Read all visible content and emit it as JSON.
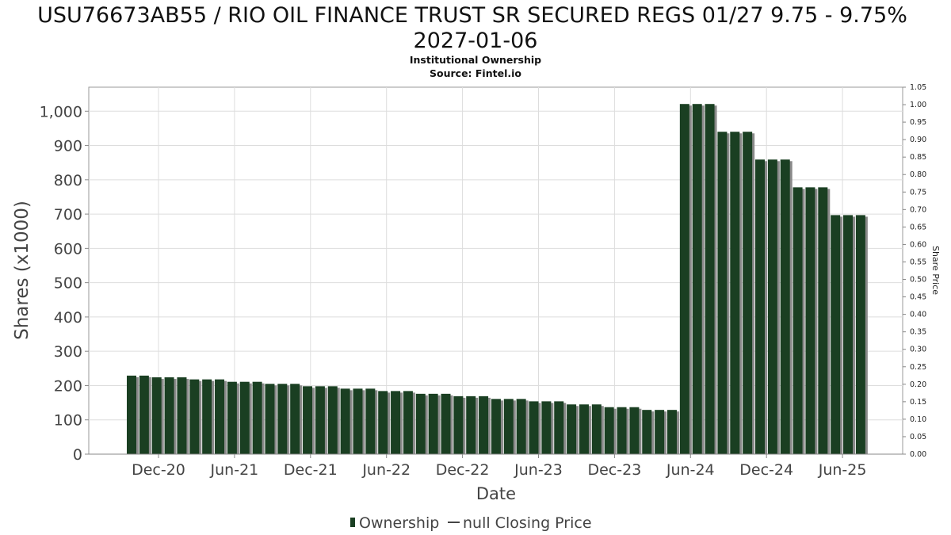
{
  "chart_data": {
    "type": "bar",
    "title_line1": "USU76673AB55 / RIO OIL FINANCE TRUST SR SECURED REGS 01/27 9.75 - 9.75%",
    "title_line2": "2027-01-06",
    "subtitle": "Institutional Ownership",
    "source": "Source: Fintel.io",
    "xlabel": "Date",
    "ylabel": "Shares (x1000)",
    "y2label": "Share Price",
    "ylim": [
      0,
      1070
    ],
    "y_ticks": [
      "0",
      "100",
      "200",
      "300",
      "400",
      "500",
      "600",
      "700",
      "800",
      "900",
      "1,000"
    ],
    "y2lim": [
      0,
      1.05
    ],
    "y2_ticks": [
      "0.00",
      "0.05",
      "0.10",
      "0.15",
      "0.20",
      "0.25",
      "0.30",
      "0.35",
      "0.40",
      "0.45",
      "0.50",
      "0.55",
      "0.60",
      "0.65",
      "0.70",
      "0.75",
      "0.80",
      "0.85",
      "0.90",
      "0.95",
      "1.00",
      "1.05"
    ],
    "x_ticks": [
      "Dec-20",
      "Jun-21",
      "Dec-21",
      "Jun-22",
      "Dec-22",
      "Jun-23",
      "Dec-23",
      "Jun-24",
      "Dec-24",
      "Jun-25"
    ],
    "grid": true,
    "legend_position": "bottom",
    "series": [
      {
        "name": "Ownership",
        "color": "#1a3f22",
        "values": [
          229,
          229,
          224,
          224,
          224,
          218,
          218,
          218,
          211,
          211,
          211,
          205,
          205,
          205,
          198,
          198,
          198,
          191,
          191,
          191,
          184,
          184,
          184,
          176,
          176,
          176,
          169,
          169,
          169,
          161,
          161,
          161,
          154,
          154,
          154,
          145,
          145,
          145,
          137,
          137,
          137,
          129,
          129,
          129,
          1021,
          1021,
          1021,
          940,
          940,
          940,
          859,
          859,
          859,
          778,
          778,
          778,
          697,
          697,
          697
        ]
      },
      {
        "name": "null Closing Price",
        "color": "#444444",
        "values": []
      }
    ]
  }
}
